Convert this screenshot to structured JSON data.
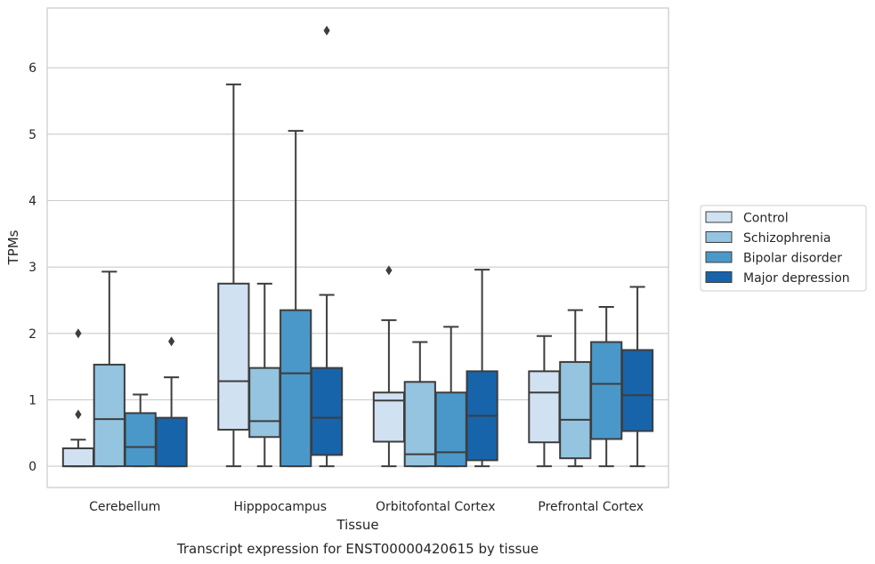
{
  "chart_data": {
    "type": "boxplot",
    "caption": "Transcript expression for ENST00000420615 by tissue",
    "xlabel": "Tissue",
    "ylabel": "TPMs",
    "ylim": [
      -0.32,
      6.9
    ],
    "yticks": [
      0,
      1,
      2,
      3,
      4,
      5,
      6
    ],
    "grid": "horizontal",
    "legend_position": "right",
    "categories": [
      "Cerebellum",
      "Hipppocampus",
      "Orbitofontal Cortex",
      "Prefrontal Cortex"
    ],
    "series": [
      {
        "name": "Control",
        "color": "#d0e1f2",
        "boxes": [
          {
            "whislo": 0,
            "q1": 0,
            "med": 0,
            "q3": 0.27,
            "whishi": 0.4,
            "fliers": [
              0.78,
              2.0
            ]
          },
          {
            "whislo": 0,
            "q1": 0.55,
            "med": 1.28,
            "q3": 2.75,
            "whishi": 5.75,
            "fliers": []
          },
          {
            "whislo": 0,
            "q1": 0.37,
            "med": 0.99,
            "q3": 1.11,
            "whishi": 2.2,
            "fliers": [
              2.95
            ]
          },
          {
            "whislo": 0,
            "q1": 0.36,
            "med": 1.11,
            "q3": 1.43,
            "whishi": 1.96,
            "fliers": []
          }
        ]
      },
      {
        "name": "Schizophrenia",
        "color": "#94c4df",
        "boxes": [
          {
            "whislo": 0,
            "q1": 0,
            "med": 0.71,
            "q3": 1.53,
            "whishi": 2.93,
            "fliers": []
          },
          {
            "whislo": 0,
            "q1": 0.44,
            "med": 0.68,
            "q3": 1.48,
            "whishi": 2.75,
            "fliers": []
          },
          {
            "whislo": 0,
            "q1": 0,
            "med": 0.18,
            "q3": 1.27,
            "whishi": 1.87,
            "fliers": []
          },
          {
            "whislo": 0,
            "q1": 0.12,
            "med": 0.7,
            "q3": 1.57,
            "whishi": 2.35,
            "fliers": []
          }
        ]
      },
      {
        "name": "Bipolar disorder",
        "color": "#4a98c9",
        "boxes": [
          {
            "whislo": 0,
            "q1": 0,
            "med": 0.29,
            "q3": 0.8,
            "whishi": 1.08,
            "fliers": []
          },
          {
            "whislo": 0,
            "q1": 0,
            "med": 1.4,
            "q3": 2.35,
            "whishi": 5.05,
            "fliers": []
          },
          {
            "whislo": 0,
            "q1": 0,
            "med": 0.21,
            "q3": 1.11,
            "whishi": 2.1,
            "fliers": []
          },
          {
            "whislo": 0,
            "q1": 0.41,
            "med": 1.24,
            "q3": 1.87,
            "whishi": 2.4,
            "fliers": []
          }
        ]
      },
      {
        "name": "Major depression",
        "color": "#1764ab",
        "boxes": [
          {
            "whislo": 0,
            "q1": 0,
            "med": 0,
            "q3": 0.73,
            "whishi": 1.34,
            "fliers": [
              1.88
            ]
          },
          {
            "whislo": 0,
            "q1": 0.17,
            "med": 0.73,
            "q3": 1.48,
            "whishi": 2.58,
            "fliers": [
              6.56
            ]
          },
          {
            "whislo": 0,
            "q1": 0.09,
            "med": 0.76,
            "q3": 1.43,
            "whishi": 2.96,
            "fliers": []
          },
          {
            "whislo": 0,
            "q1": 0.53,
            "med": 1.07,
            "q3": 1.75,
            "whishi": 2.7,
            "fliers": []
          }
        ]
      }
    ]
  }
}
